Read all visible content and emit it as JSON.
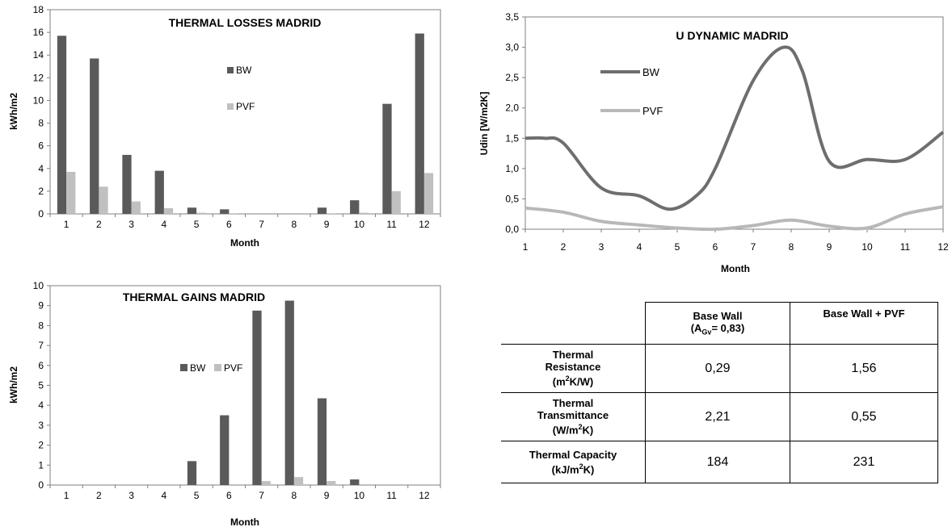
{
  "chart_data": [
    {
      "type": "bar",
      "title": "THERMAL LOSSES MADRID",
      "xlabel": "Month",
      "ylabel": "kWh/m2",
      "ylim": [
        0,
        18
      ],
      "yticks": [
        "0",
        "2",
        "4",
        "6",
        "8",
        "10",
        "12",
        "14",
        "16",
        "18"
      ],
      "categories": [
        "1",
        "2",
        "3",
        "4",
        "5",
        "6",
        "7",
        "8",
        "9",
        "10",
        "11",
        "12"
      ],
      "series": [
        {
          "name": "BW",
          "color": "#5a5a5a",
          "values": [
            15.7,
            13.7,
            5.2,
            3.8,
            0.55,
            0.4,
            0,
            0,
            0.55,
            1.2,
            9.7,
            15.9
          ]
        },
        {
          "name": "PVF",
          "color": "#c0c0c0",
          "values": [
            3.7,
            2.4,
            1.1,
            0.5,
            0.1,
            0.05,
            0,
            0,
            0.05,
            0.1,
            2.0,
            3.6
          ]
        }
      ],
      "legend": "middle-right",
      "grid": false
    },
    {
      "type": "line",
      "title": "U DYNAMIC MADRID",
      "xlabel": "Month",
      "ylabel": "Udin [W/m2K]",
      "ylim": [
        0,
        3.5
      ],
      "yticks": [
        "0,0",
        "0,5",
        "1,0",
        "1,5",
        "2,0",
        "2,5",
        "3,0",
        "3,5"
      ],
      "x": [
        "1",
        "2",
        "3",
        "4",
        "5",
        "6",
        "7",
        "8",
        "9",
        "10",
        "11",
        "12"
      ],
      "series": [
        {
          "name": "BW",
          "color": "#6e6e6e",
          "x": [
            1,
            1.5,
            2,
            3,
            4,
            4.8,
            5.5,
            6,
            7,
            7.8,
            8.3,
            9,
            10,
            11,
            12
          ],
          "values": [
            1.5,
            1.5,
            1.42,
            0.68,
            0.55,
            0.33,
            0.55,
            1.0,
            2.45,
            3.0,
            2.6,
            1.12,
            1.15,
            1.15,
            1.6
          ]
        },
        {
          "name": "PVF",
          "color": "#b8b8b8",
          "x": [
            1,
            2,
            3,
            4,
            5,
            6,
            7,
            8,
            9,
            10,
            11,
            12
          ],
          "values": [
            0.35,
            0.28,
            0.13,
            0.07,
            0.02,
            0.0,
            0.06,
            0.15,
            0.05,
            0.02,
            0.25,
            0.37
          ]
        }
      ],
      "legend": "left",
      "grid": false
    },
    {
      "type": "bar",
      "title": "THERMAL GAINS MADRID",
      "xlabel": "Month",
      "ylabel": "kWh/m2",
      "ylim": [
        0,
        10
      ],
      "yticks": [
        "0",
        "1",
        "2",
        "3",
        "4",
        "5",
        "6",
        "7",
        "8",
        "9",
        "10"
      ],
      "categories": [
        "1",
        "2",
        "3",
        "4",
        "5",
        "6",
        "7",
        "8",
        "9",
        "10",
        "11",
        "12"
      ],
      "series": [
        {
          "name": "BW",
          "color": "#5a5a5a",
          "values": [
            0,
            0,
            0,
            0,
            1.2,
            3.5,
            8.75,
            9.25,
            4.35,
            0.28,
            0,
            0
          ]
        },
        {
          "name": "PVF",
          "color": "#c0c0c0",
          "values": [
            0,
            0,
            0,
            0,
            0,
            0,
            0.2,
            0.4,
            0.2,
            0,
            0,
            0
          ]
        }
      ],
      "legend": "middle",
      "grid": false
    },
    {
      "type": "table",
      "columns": {
        "c1_line1": "Base Wall",
        "c1_line2_pre": "(A",
        "c1_line2_sub": "Gv",
        "c1_line2_post": "= 0,83)",
        "c2": "Base Wall + PVF"
      },
      "rows": [
        {
          "h_line1": "Thermal",
          "h_line2": "Resistance",
          "h_pre": "(m",
          "h_sup": "2",
          "h_post": "K/W)",
          "v1": "0,29",
          "v2": "1,56"
        },
        {
          "h_line1": "Thermal",
          "h_line2": "Transmittance",
          "h_pre": "(W/m",
          "h_sup": "2",
          "h_post": "K)",
          "v1": "2,21",
          "v2": "0,55"
        },
        {
          "h_line1": "Thermal Capacity",
          "h_line2": "",
          "h_pre": "(kJ/m",
          "h_sup": "2",
          "h_post": "K)",
          "v1": "184",
          "v2": "231"
        }
      ]
    }
  ]
}
